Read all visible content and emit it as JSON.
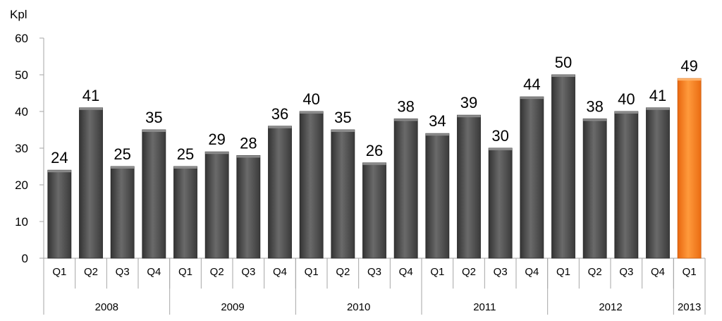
{
  "chart_data": {
    "type": "bar",
    "title": "",
    "ylabel": "Kpl",
    "xlabel": "",
    "ylim": [
      0,
      60
    ],
    "yticks": [
      "0",
      "10",
      "20",
      "30",
      "40",
      "50",
      "60"
    ],
    "grid": false,
    "legend": "none",
    "categories": [
      "Q1",
      "Q2",
      "Q3",
      "Q4",
      "Q1",
      "Q2",
      "Q3",
      "Q4",
      "Q1",
      "Q2",
      "Q3",
      "Q4",
      "Q1",
      "Q2",
      "Q3",
      "Q4",
      "Q1",
      "Q2",
      "Q3",
      "Q4",
      "Q1"
    ],
    "groups": [
      {
        "label": "2008",
        "count": 4
      },
      {
        "label": "2009",
        "count": 4
      },
      {
        "label": "2010",
        "count": 4
      },
      {
        "label": "2011",
        "count": 4
      },
      {
        "label": "2012",
        "count": 4
      },
      {
        "label": "2013",
        "count": 1
      }
    ],
    "values": [
      24,
      41,
      25,
      35,
      25,
      29,
      28,
      36,
      40,
      35,
      26,
      38,
      34,
      39,
      30,
      44,
      50,
      38,
      40,
      41,
      49
    ],
    "highlight_index": 20,
    "colors": {
      "bar": "#4d4d4d",
      "bar_highlight": "#f47a20",
      "axis": "#a6a6a6"
    }
  }
}
